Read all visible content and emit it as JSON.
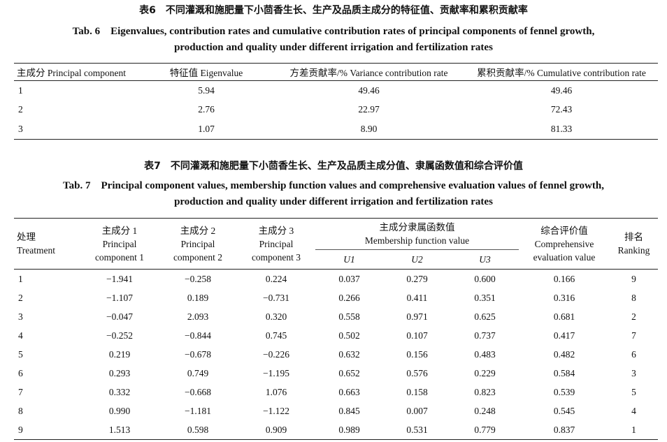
{
  "tab6": {
    "caption_cn": "表6　不同灌溉和施肥量下小茴香生长、生产及品质主成分的特征值、贡献率和累积贡献率",
    "caption_en_1": "Tab. 6　Eigenvalues, contribution rates and cumulative contribution rates of principal components of fennel growth,",
    "caption_en_2": "production and quality under different irrigation and fertilization rates",
    "headers": [
      "主成分 Principal component",
      "特征值 Eigenvalue",
      "方差贡献率/% Variance contribution rate",
      "累积贡献率/% Cumulative contribution rate"
    ],
    "rows": [
      [
        "1",
        "5.94",
        "49.46",
        "49.46"
      ],
      [
        "2",
        "2.76",
        "22.97",
        "72.43"
      ],
      [
        "3",
        "1.07",
        "8.90",
        "81.33"
      ]
    ]
  },
  "tab7": {
    "caption_cn": "表7　不同灌溉和施肥量下小茴香生长、生产及品质主成分值、隶属函数值和综合评价值",
    "caption_en_1": "Tab. 7　Principal component values, membership function values and comprehensive evaluation values of fennel growth,",
    "caption_en_2": "production and quality under different irrigation and fertilization rates",
    "headers": {
      "treatment_cn": "处理",
      "treatment_en": "Treatment",
      "pc1_cn": "主成分 1",
      "pc1_en1": "Principal",
      "pc1_en2": "component 1",
      "pc2_cn": "主成分 2",
      "pc2_en1": "Principal",
      "pc2_en2": "component 2",
      "pc3_cn": "主成分 3",
      "pc3_en1": "Principal",
      "pc3_en2": "component 3",
      "mf_cn": "主成分隶属函数值",
      "mf_en": "Membership function value",
      "u1": "U1",
      "u2": "U2",
      "u3": "U3",
      "ce_cn": "综合评价值",
      "ce_en1": "Comprehensive",
      "ce_en2": "evaluation value",
      "rank_cn": "排名",
      "rank_en": "Ranking"
    },
    "rows": [
      [
        "1",
        "−1.941",
        "−0.258",
        "0.224",
        "0.037",
        "0.279",
        "0.600",
        "0.166",
        "9"
      ],
      [
        "2",
        "−1.107",
        "0.189",
        "−0.731",
        "0.266",
        "0.411",
        "0.351",
        "0.316",
        "8"
      ],
      [
        "3",
        "−0.047",
        "2.093",
        "0.320",
        "0.558",
        "0.971",
        "0.625",
        "0.681",
        "2"
      ],
      [
        "4",
        "−0.252",
        "−0.844",
        "0.745",
        "0.502",
        "0.107",
        "0.737",
        "0.417",
        "7"
      ],
      [
        "5",
        "0.219",
        "−0.678",
        "−0.226",
        "0.632",
        "0.156",
        "0.483",
        "0.482",
        "6"
      ],
      [
        "6",
        "0.293",
        "0.749",
        "−1.195",
        "0.652",
        "0.576",
        "0.229",
        "0.584",
        "3"
      ],
      [
        "7",
        "0.332",
        "−0.668",
        "1.076",
        "0.663",
        "0.158",
        "0.823",
        "0.539",
        "5"
      ],
      [
        "8",
        "0.990",
        "−1.181",
        "−1.122",
        "0.845",
        "0.007",
        "0.248",
        "0.545",
        "4"
      ],
      [
        "9",
        "1.513",
        "0.598",
        "0.909",
        "0.989",
        "0.531",
        "0.779",
        "0.837",
        "1"
      ]
    ]
  }
}
